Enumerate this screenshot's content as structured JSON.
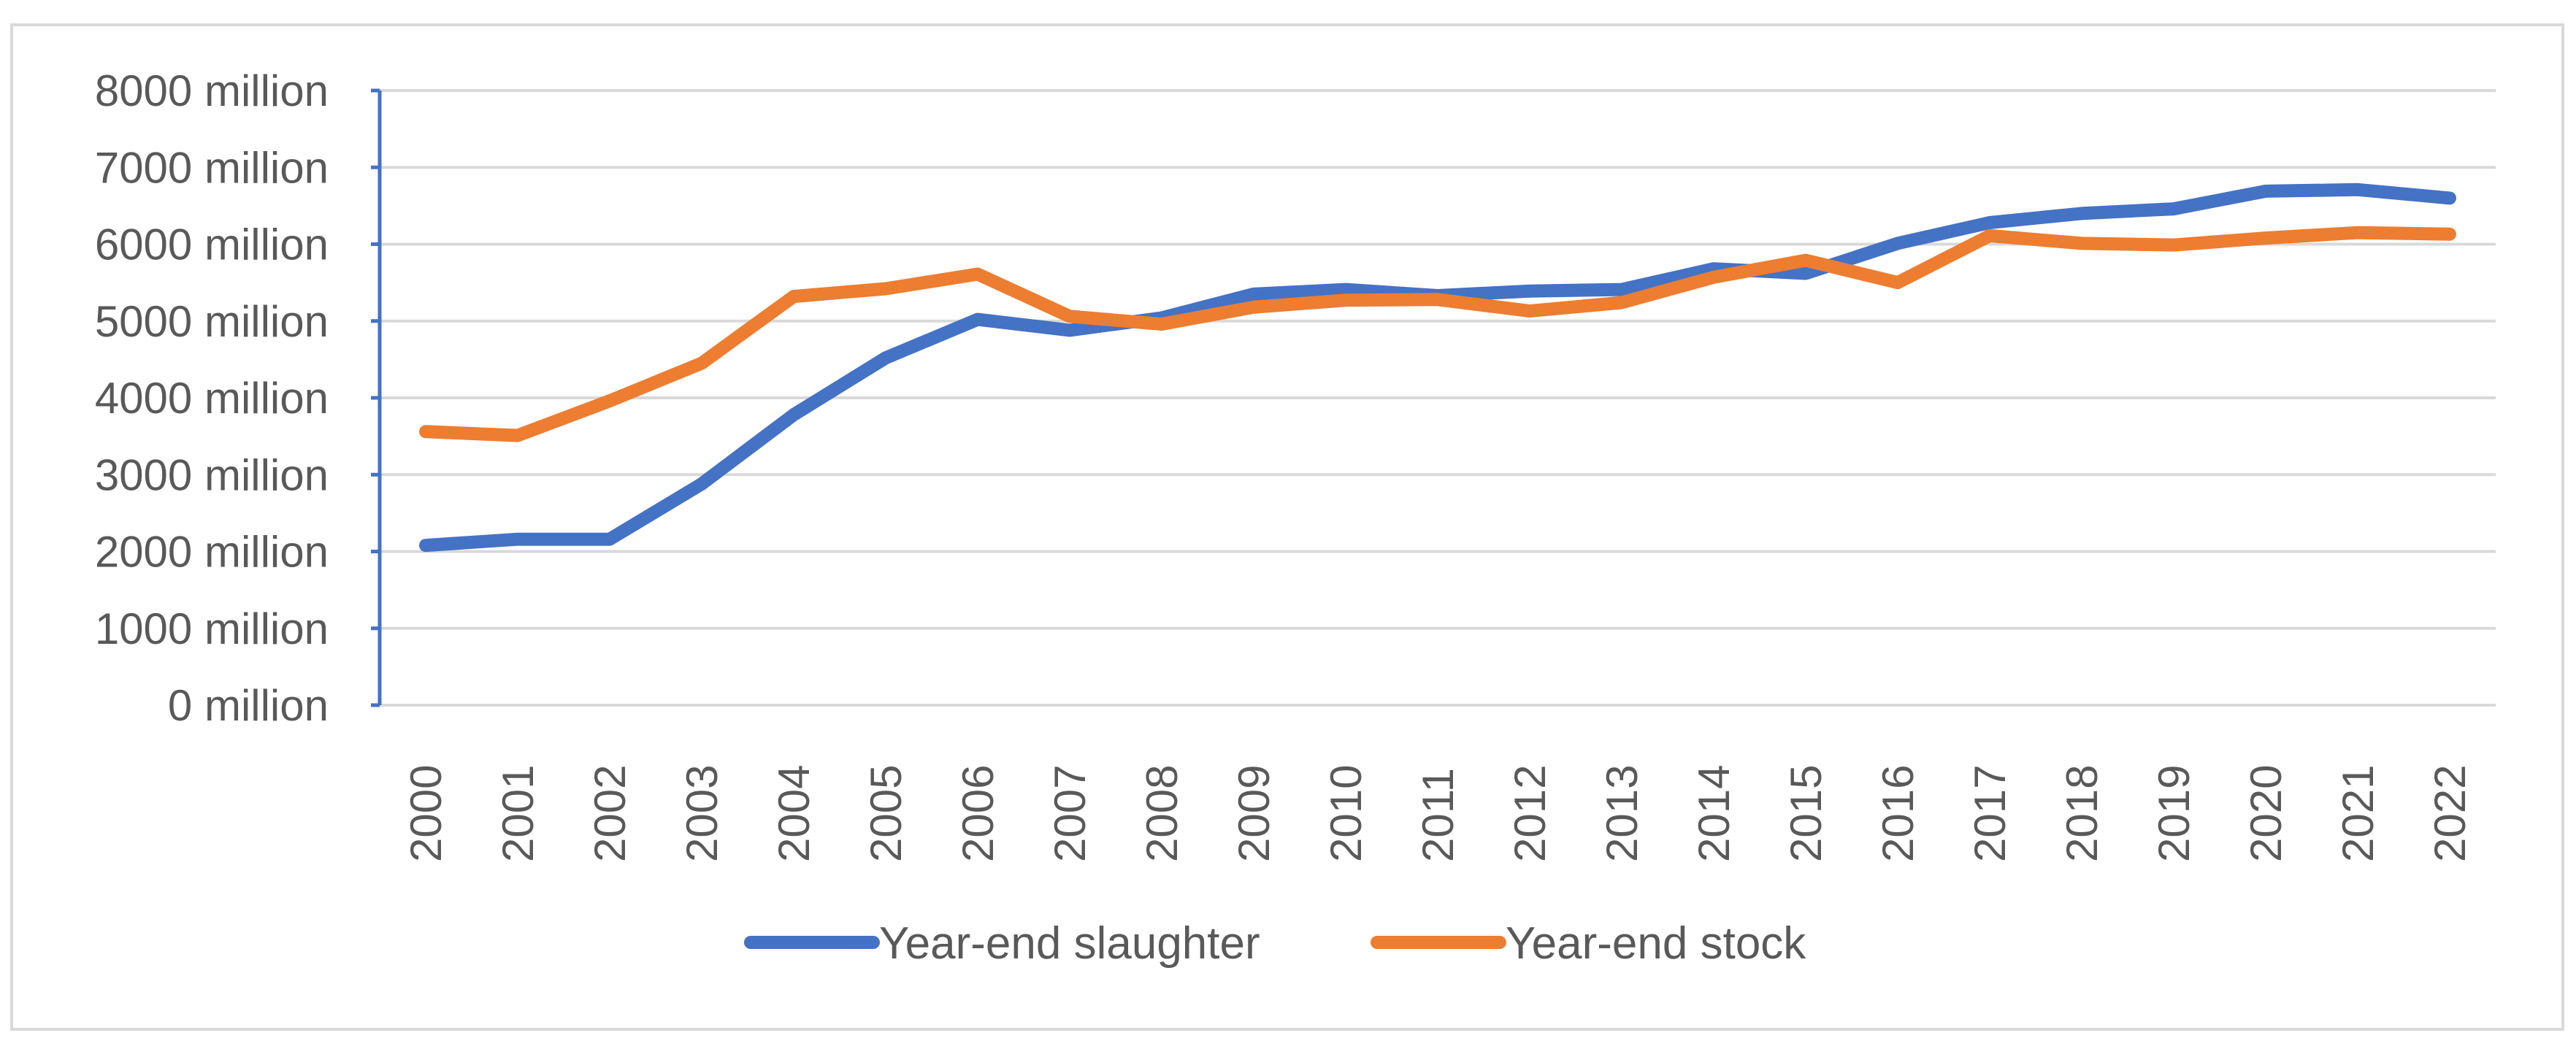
{
  "chart_data": {
    "type": "line",
    "title": "",
    "xlabel": "",
    "ylabel": "",
    "categories": [
      "2000",
      "2001",
      "2002",
      "2003",
      "2004",
      "2005",
      "2006",
      "2007",
      "2008",
      "2009",
      "2010",
      "2011",
      "2012",
      "2013",
      "2014",
      "2015",
      "2016",
      "2017",
      "2018",
      "2019",
      "2020",
      "2021",
      "2022"
    ],
    "ylim": [
      0,
      8000
    ],
    "yticks": [
      {
        "value": 0,
        "label": "0 million"
      },
      {
        "value": 1000,
        "label": "1000 million"
      },
      {
        "value": 2000,
        "label": "2000 million"
      },
      {
        "value": 3000,
        "label": "3000 million"
      },
      {
        "value": 4000,
        "label": "4000 million"
      },
      {
        "value": 5000,
        "label": "5000 million"
      },
      {
        "value": 6000,
        "label": "6000 million"
      },
      {
        "value": 7000,
        "label": "7000 million"
      },
      {
        "value": 8000,
        "label": "8000 million"
      }
    ],
    "grid": true,
    "legend_position": "bottom",
    "series": [
      {
        "name": "Year-end slaughter",
        "color": "#4472c4",
        "values": [
          2080,
          2160,
          2160,
          2880,
          3780,
          4520,
          5020,
          4880,
          5040,
          5350,
          5410,
          5330,
          5390,
          5410,
          5680,
          5620,
          6010,
          6280,
          6400,
          6460,
          6690,
          6710,
          6600
        ]
      },
      {
        "name": "Year-end stock",
        "color": "#ed7d31",
        "values": [
          3560,
          3510,
          3960,
          4450,
          5320,
          5420,
          5610,
          5060,
          4960,
          5180,
          5270,
          5280,
          5130,
          5240,
          5570,
          5790,
          5500,
          6110,
          6010,
          5990,
          6080,
          6150,
          6130
        ]
      }
    ]
  }
}
